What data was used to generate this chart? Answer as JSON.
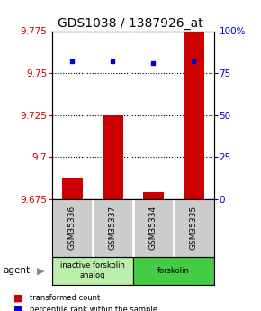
{
  "title": "GDS1038 / 1387926_at",
  "samples": [
    "GSM35336",
    "GSM35337",
    "GSM35334",
    "GSM35335"
  ],
  "bar_values": [
    9.688,
    9.725,
    9.679,
    9.775
  ],
  "percentile_values": [
    82,
    82,
    81,
    82
  ],
  "ylim_left": [
    9.675,
    9.775
  ],
  "ylim_right": [
    0,
    100
  ],
  "yticks_left": [
    9.675,
    9.7,
    9.725,
    9.75,
    9.775
  ],
  "yticks_right": [
    0,
    25,
    50,
    75,
    100
  ],
  "bar_color": "#cc0000",
  "percentile_color": "#0000cc",
  "bar_width": 0.5,
  "agent_groups": [
    {
      "label": "inactive forskolin\nanalog",
      "samples": [
        0,
        1
      ],
      "color": "#bbeeaa"
    },
    {
      "label": "forskolin",
      "samples": [
        2,
        3
      ],
      "color": "#44cc44"
    }
  ],
  "legend_items": [
    {
      "label": "transformed count",
      "color": "#cc0000"
    },
    {
      "label": "percentile rank within the sample",
      "color": "#0000cc"
    }
  ],
  "background_color": "#ffffff",
  "plot_bg": "#ffffff",
  "title_fontsize": 10,
  "tick_fontsize": 7.5,
  "label_fontsize": 7
}
